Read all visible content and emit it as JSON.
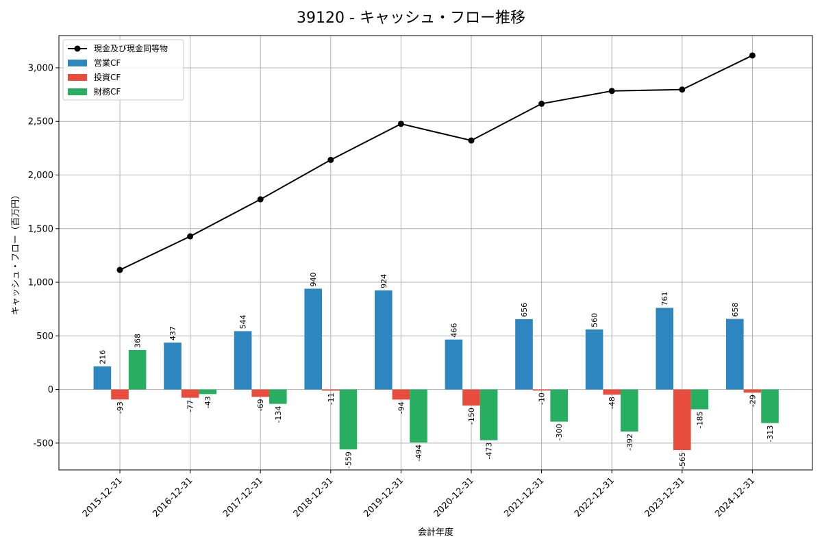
{
  "chart_data": {
    "type": "bar",
    "title": "39120 - キャッシュ・フロー推移",
    "xlabel": "会計年度",
    "ylabel": "キャッシュ・フロー（百万円）",
    "categories": [
      "2015-12-31",
      "2016-12-31",
      "2017-12-31",
      "2018-12-31",
      "2019-12-31",
      "2020-12-31",
      "2021-12-31",
      "2022-12-31",
      "2023-12-31",
      "2024-12-31"
    ],
    "ylim": [
      -750,
      3300
    ],
    "yticks": [
      -500,
      0,
      500,
      1000,
      1500,
      2000,
      2500,
      3000
    ],
    "ytick_labels": [
      "-500",
      "0",
      "500",
      "1,000",
      "1,500",
      "2,000",
      "2,500",
      "3,000"
    ],
    "grid": true,
    "legend_position": "top-left",
    "series": [
      {
        "name": "営業CF",
        "kind": "bar",
        "color": "#2e86c1",
        "values": [
          216,
          437,
          544,
          940,
          924,
          466,
          656,
          560,
          761,
          658
        ]
      },
      {
        "name": "投資CF",
        "kind": "bar",
        "color": "#e74c3c",
        "values": [
          -93,
          -77,
          -69,
          -11,
          -94,
          -150,
          -10,
          -48,
          -565,
          -29
        ]
      },
      {
        "name": "財務CF",
        "kind": "bar",
        "color": "#27ae60",
        "values": [
          368,
          -43,
          -134,
          -559,
          -494,
          -473,
          -300,
          -392,
          -185,
          -313
        ]
      },
      {
        "name": "現金及び現金同等物",
        "kind": "line",
        "color": "#000000",
        "values": [
          1115,
          1428,
          1773,
          2141,
          2477,
          2322,
          2665,
          2784,
          2797,
          3115
        ]
      }
    ]
  }
}
